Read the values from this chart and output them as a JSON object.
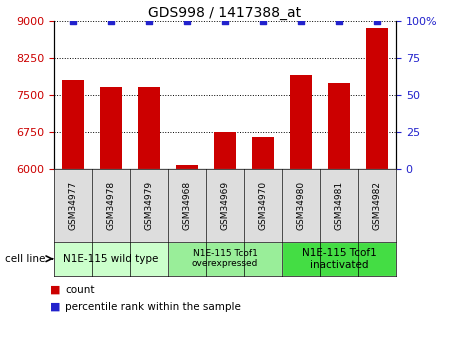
{
  "title": "GDS998 / 1417388_at",
  "samples": [
    "GSM34977",
    "GSM34978",
    "GSM34979",
    "GSM34968",
    "GSM34969",
    "GSM34970",
    "GSM34980",
    "GSM34981",
    "GSM34982"
  ],
  "counts": [
    7800,
    7650,
    7650,
    6080,
    6750,
    6650,
    7900,
    7750,
    8850
  ],
  "percentiles": [
    100,
    100,
    100,
    100,
    100,
    100,
    100,
    100,
    100
  ],
  "ylim_left": [
    6000,
    9000
  ],
  "ylim_right": [
    0,
    100
  ],
  "yticks_left": [
    6000,
    6750,
    7500,
    8250,
    9000
  ],
  "yticks_right": [
    0,
    25,
    50,
    75,
    100
  ],
  "bar_color": "#cc0000",
  "dot_color": "#2222cc",
  "group_colors": [
    "#ccffcc",
    "#99ee99",
    "#44dd44"
  ],
  "groups": [
    {
      "label": "N1E-115 wild type",
      "start": 0,
      "end": 3
    },
    {
      "label": "N1E-115 Tcof1\noverexpressed",
      "start": 3,
      "end": 6
    },
    {
      "label": "N1E-115 Tcof1\ninactivated",
      "start": 6,
      "end": 9
    }
  ],
  "tick_color_left": "#cc0000",
  "tick_color_right": "#2222cc",
  "bar_width": 0.6,
  "sample_box_color": "#dddddd",
  "cell_line_label": "cell line"
}
